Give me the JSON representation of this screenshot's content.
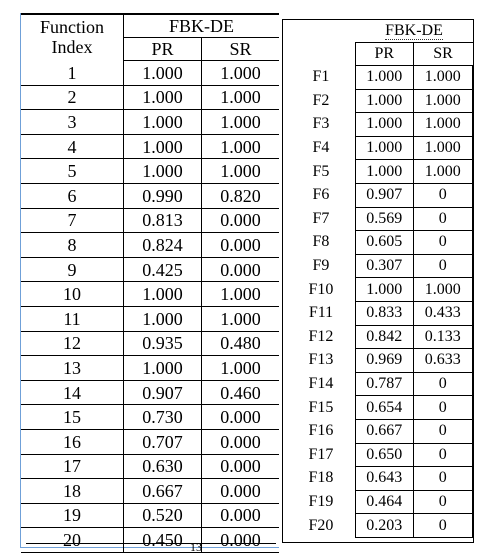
{
  "left_table": {
    "header": {
      "index_label_line1": "Function",
      "index_label_line2": "Index",
      "group_label": "FBK-DE",
      "col_pr": "PR",
      "col_sr": "SR"
    },
    "rows": [
      {
        "idx": "1",
        "pr": "1.000",
        "pr_bold": true,
        "sr": "1.000"
      },
      {
        "idx": "2",
        "pr": "1.000",
        "pr_bold": true,
        "sr": "1.000"
      },
      {
        "idx": "3",
        "pr": "1.000",
        "pr_bold": true,
        "sr": "1.000"
      },
      {
        "idx": "4",
        "pr": "1.000",
        "pr_bold": true,
        "sr": "1.000"
      },
      {
        "idx": "5",
        "pr": "1.000",
        "pr_bold": true,
        "sr": "1.000"
      },
      {
        "idx": "6",
        "pr": "0.990",
        "pr_bold": false,
        "sr": "0.820"
      },
      {
        "idx": "7",
        "pr": "0.813",
        "pr_bold": false,
        "sr": "0.000"
      },
      {
        "idx": "8",
        "pr": "0.824",
        "pr_bold": false,
        "sr": "0.000"
      },
      {
        "idx": "9",
        "pr": "0.425",
        "pr_bold": false,
        "sr": "0.000"
      },
      {
        "idx": "10",
        "pr": "1.000",
        "pr_bold": true,
        "sr": "1.000"
      },
      {
        "idx": "11",
        "pr": "1.000",
        "pr_bold": true,
        "sr": "1.000"
      },
      {
        "idx": "12",
        "pr": "0.935",
        "pr_bold": false,
        "sr": "0.480"
      },
      {
        "idx": "13",
        "pr": "1.000",
        "pr_bold": true,
        "sr": "1.000"
      },
      {
        "idx": "14",
        "pr": "0.907",
        "pr_bold": true,
        "sr": "0.460"
      },
      {
        "idx": "15",
        "pr": "0.730",
        "pr_bold": false,
        "sr": "0.000"
      },
      {
        "idx": "16",
        "pr": "0.707",
        "pr_bold": true,
        "sr": "0.000"
      },
      {
        "idx": "17",
        "pr": "0.630",
        "pr_bold": false,
        "sr": "0.000"
      },
      {
        "idx": "18",
        "pr": "0.667",
        "pr_bold": true,
        "sr": "0.000"
      },
      {
        "idx": "19",
        "pr": "0.520",
        "pr_bold": true,
        "sr": "0.000"
      },
      {
        "idx": "20",
        "pr": "0.450",
        "pr_bold": true,
        "sr": "0.000"
      }
    ],
    "trailing_fragment": "13"
  },
  "right_table": {
    "header": {
      "group_label": "FBK-DE",
      "col_pr": "PR",
      "col_sr": "SR"
    },
    "rows": [
      {
        "f": "F1",
        "pr": "1.000",
        "sr": "1.000"
      },
      {
        "f": "F2",
        "pr": "1.000",
        "sr": "1.000"
      },
      {
        "f": "F3",
        "pr": "1.000",
        "sr": "1.000"
      },
      {
        "f": "F4",
        "pr": "1.000",
        "sr": "1.000"
      },
      {
        "f": "F5",
        "pr": "1.000",
        "sr": "1.000"
      },
      {
        "f": "F6",
        "pr": "0.907",
        "sr": "0"
      },
      {
        "f": "F7",
        "pr": "0.569",
        "sr": "0"
      },
      {
        "f": "F8",
        "pr": "0.605",
        "sr": "0"
      },
      {
        "f": "F9",
        "pr": "0.307",
        "sr": "0"
      },
      {
        "f": "F10",
        "pr": "1.000",
        "sr": "1.000"
      },
      {
        "f": "F11",
        "pr": "0.833",
        "sr": "0.433"
      },
      {
        "f": "F12",
        "pr": "0.842",
        "sr": "0.133"
      },
      {
        "f": "F13",
        "pr": "0.969",
        "sr": "0.633"
      },
      {
        "f": "F14",
        "pr": "0.787",
        "sr": "0"
      },
      {
        "f": "F15",
        "pr": "0.654",
        "sr": "0"
      },
      {
        "f": "F16",
        "pr": "0.667",
        "sr": "0"
      },
      {
        "f": "F17",
        "pr": "0.650",
        "sr": "0"
      },
      {
        "f": "F18",
        "pr": "0.643",
        "sr": "0"
      },
      {
        "f": "F19",
        "pr": "0.464",
        "sr": "0"
      },
      {
        "f": "F20",
        "pr": "0.203",
        "sr": "0"
      }
    ]
  },
  "colors": {
    "text": "#000000",
    "background": "#ffffff",
    "selection_line": "#6fa0d8"
  }
}
